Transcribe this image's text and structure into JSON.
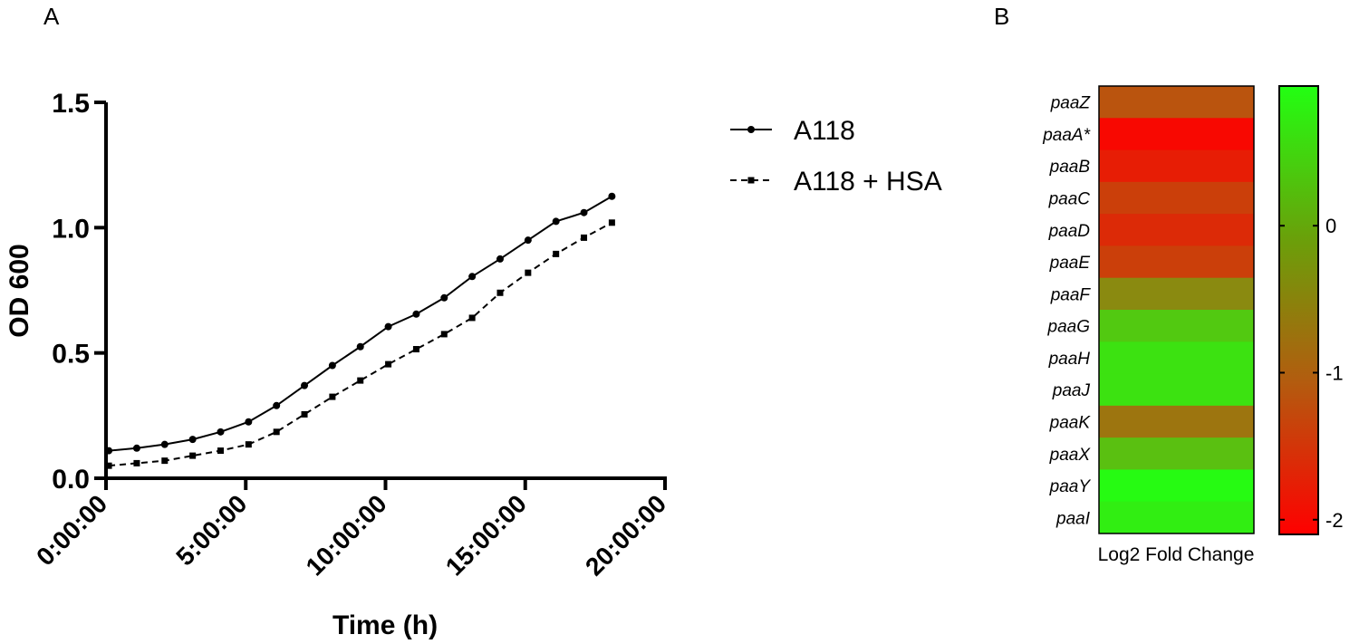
{
  "panels": {
    "a_letter": "A",
    "b_letter": "B"
  },
  "chart_data": [
    {
      "type": "line",
      "title": "",
      "xlabel": "Time (h)",
      "ylabel": "OD 600",
      "x_ticks": [
        "0:00:00",
        "5:00:00",
        "10:00:00",
        "15:00:00",
        "20:00:00"
      ],
      "x_tick_hours": [
        0,
        5,
        10,
        15,
        20
      ],
      "xlim_hours": [
        0,
        20
      ],
      "y_ticks": [
        "0.0",
        "0.5",
        "1.0",
        "1.5"
      ],
      "ylim": [
        0,
        1.5
      ],
      "grid": false,
      "legend_position": "right",
      "x_hours": [
        0.1,
        1.1,
        2.1,
        3.1,
        4.1,
        5.1,
        6.1,
        7.1,
        8.1,
        9.1,
        10.1,
        11.1,
        12.1,
        13.1,
        14.1,
        15.1,
        16.1,
        17.1,
        18.1
      ],
      "series": [
        {
          "name": "A118",
          "marker": "circle",
          "dash": "solid",
          "values": [
            0.11,
            0.12,
            0.135,
            0.155,
            0.185,
            0.225,
            0.29,
            0.37,
            0.45,
            0.525,
            0.605,
            0.655,
            0.72,
            0.805,
            0.875,
            0.95,
            1.025,
            1.06,
            1.125
          ]
        },
        {
          "name": "A118 + HSA",
          "marker": "square",
          "dash": "dashed",
          "values": [
            0.05,
            0.06,
            0.07,
            0.09,
            0.11,
            0.135,
            0.185,
            0.255,
            0.325,
            0.39,
            0.455,
            0.515,
            0.575,
            0.64,
            0.74,
            0.82,
            0.895,
            0.96,
            1.02
          ]
        }
      ]
    },
    {
      "type": "heatmap",
      "xlabel": "Log2 Fold Change",
      "rows": [
        "paaZ",
        "paaA*",
        "paaB",
        "paaC",
        "paaD",
        "paaE",
        "paaF",
        "paaG",
        "paaH",
        "paaJ",
        "paaK",
        "paaX",
        "paaY",
        "paaI"
      ],
      "values": [
        -1.1,
        -2.0,
        -1.75,
        -1.35,
        -1.6,
        -1.35,
        -0.45,
        0.3,
        0.6,
        0.6,
        -0.7,
        0.2,
        0.9,
        0.75
      ],
      "colorbar": {
        "ticks": [
          "0",
          "-1",
          "-2"
        ],
        "tick_values": [
          0,
          -1,
          -2
        ],
        "range": [
          -2.1,
          0.95
        ],
        "color_low": "#ff0000",
        "color_mid": "#b35c0f",
        "color_high": "#22ff12"
      }
    }
  ]
}
